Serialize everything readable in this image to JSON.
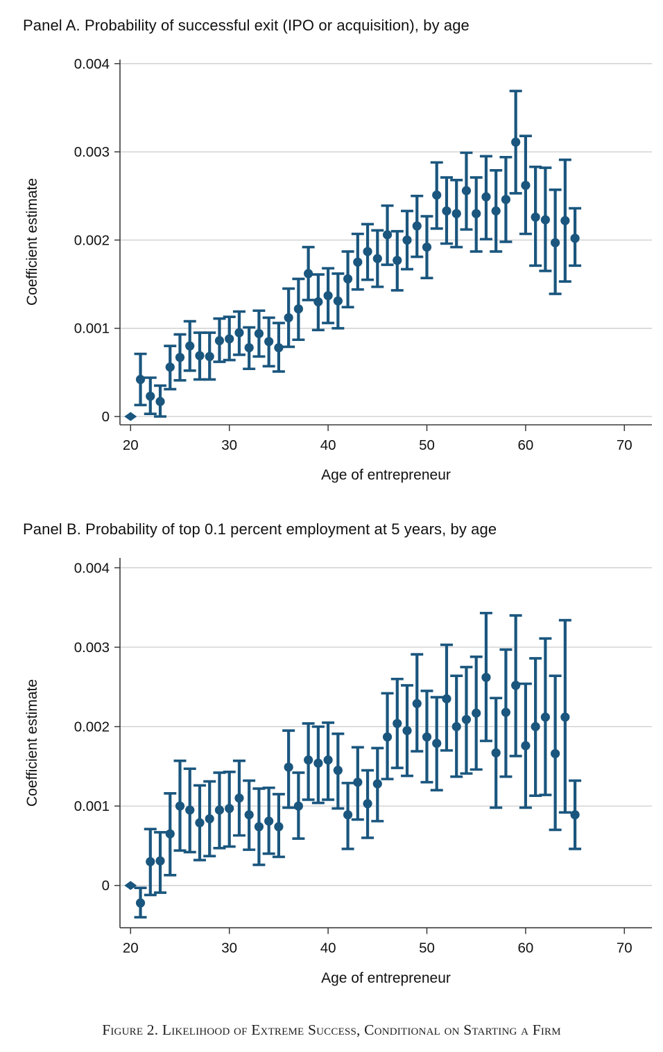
{
  "caption": "Figure 2. Likelihood of Extreme Success, Conditional on Starting a Firm",
  "colors": {
    "marker": "#1a567e",
    "grid": "#cccccc",
    "axis": "#3a3a3a",
    "text": "#111111",
    "background": "#ffffff"
  },
  "chart_data": [
    {
      "type": "scatter",
      "subtype": "coefficient-errorbar-plot",
      "title": "Panel A. Probability of successful exit (IPO or acquisition), by age",
      "xlabel": "Age of entrepreneur",
      "ylabel": "Coefficient estimate",
      "xlim": [
        19,
        72
      ],
      "ylim": [
        -0.0001,
        0.00405
      ],
      "grid": "horizontal",
      "legend": "none",
      "reference_point_marker": "diamond",
      "yticks": [
        {
          "value": 0,
          "label": "0"
        },
        {
          "value": 0.001,
          "label": "0.001"
        },
        {
          "value": 0.002,
          "label": "0.002"
        },
        {
          "value": 0.003,
          "label": "0.003"
        },
        {
          "value": 0.004,
          "label": "0.004"
        }
      ],
      "xticks": [
        20,
        30,
        40,
        50,
        60,
        70
      ],
      "points_columns": [
        "age",
        "estimate",
        "ci_low",
        "ci_high"
      ],
      "points": [
        [
          20,
          0.0,
          null,
          null
        ],
        [
          21,
          0.00042,
          0.00013,
          0.00071
        ],
        [
          22,
          0.00023,
          3e-05,
          0.00044
        ],
        [
          23,
          0.00017,
          0.0,
          0.00035
        ],
        [
          24,
          0.00056,
          0.00031,
          0.0008
        ],
        [
          25,
          0.00067,
          0.00041,
          0.00093
        ],
        [
          26,
          0.0008,
          0.00052,
          0.00108
        ],
        [
          27,
          0.00069,
          0.00042,
          0.00095
        ],
        [
          28,
          0.00068,
          0.00042,
          0.00095
        ],
        [
          29,
          0.00086,
          0.00062,
          0.00111
        ],
        [
          30,
          0.00088,
          0.00064,
          0.00113
        ],
        [
          31,
          0.00095,
          0.0007,
          0.00119
        ],
        [
          32,
          0.00078,
          0.00054,
          0.00101
        ],
        [
          33,
          0.00094,
          0.00068,
          0.0012
        ],
        [
          34,
          0.00085,
          0.00057,
          0.00112
        ],
        [
          35,
          0.00078,
          0.00051,
          0.00106
        ],
        [
          36,
          0.00112,
          0.00079,
          0.00145
        ],
        [
          37,
          0.00122,
          0.00087,
          0.00156
        ],
        [
          38,
          0.00162,
          0.00132,
          0.00192
        ],
        [
          39,
          0.0013,
          0.00098,
          0.00161
        ],
        [
          40,
          0.00137,
          0.00106,
          0.00168
        ],
        [
          41,
          0.00131,
          0.001,
          0.00162
        ],
        [
          42,
          0.00156,
          0.00124,
          0.00187
        ],
        [
          43,
          0.00175,
          0.00144,
          0.00207
        ],
        [
          44,
          0.00187,
          0.00155,
          0.00218
        ],
        [
          45,
          0.00179,
          0.00147,
          0.00211
        ],
        [
          46,
          0.00206,
          0.00172,
          0.00239
        ],
        [
          47,
          0.00177,
          0.00143,
          0.0021
        ],
        [
          48,
          0.002,
          0.00167,
          0.00233
        ],
        [
          49,
          0.00216,
          0.00181,
          0.0025
        ],
        [
          50,
          0.00192,
          0.00157,
          0.00227
        ],
        [
          51,
          0.00251,
          0.00213,
          0.00288
        ],
        [
          52,
          0.00233,
          0.00196,
          0.00271
        ],
        [
          53,
          0.0023,
          0.00192,
          0.00268
        ],
        [
          54,
          0.00256,
          0.00212,
          0.00299
        ],
        [
          55,
          0.0023,
          0.00187,
          0.00271
        ],
        [
          56,
          0.00249,
          0.00201,
          0.00295
        ],
        [
          57,
          0.00233,
          0.00187,
          0.00279
        ],
        [
          58,
          0.00246,
          0.00198,
          0.00294
        ],
        [
          59,
          0.00311,
          0.00253,
          0.00369
        ],
        [
          60,
          0.00262,
          0.00207,
          0.00318
        ],
        [
          61,
          0.00226,
          0.00171,
          0.00283
        ],
        [
          62,
          0.00223,
          0.00165,
          0.00282
        ],
        [
          63,
          0.00197,
          0.00139,
          0.00257
        ],
        [
          64,
          0.00222,
          0.00153,
          0.00291
        ],
        [
          65,
          0.00202,
          0.00171,
          0.00236
        ]
      ]
    },
    {
      "type": "scatter",
      "subtype": "coefficient-errorbar-plot",
      "title": "Panel B. Probability of top 0.1 percent employment at 5 years, by age",
      "xlabel": "Age of entrepreneur",
      "ylabel": "Coefficient estimate",
      "xlim": [
        19,
        72
      ],
      "ylim": [
        -0.00053,
        0.00412
      ],
      "grid": "horizontal",
      "legend": "none",
      "reference_point_marker": "diamond",
      "yticks": [
        {
          "value": 0,
          "label": "0"
        },
        {
          "value": 0.001,
          "label": "0.001"
        },
        {
          "value": 0.002,
          "label": "0.002"
        },
        {
          "value": 0.003,
          "label": "0.003"
        },
        {
          "value": 0.004,
          "label": "0.004"
        }
      ],
      "xticks": [
        20,
        30,
        40,
        50,
        60,
        70
      ],
      "points_columns": [
        "age",
        "estimate",
        "ci_low",
        "ci_high"
      ],
      "points": [
        [
          20,
          0.0,
          null,
          null
        ],
        [
          21,
          -0.00022,
          -0.0004,
          -3e-05
        ],
        [
          22,
          0.0003,
          -0.00012,
          0.00071
        ],
        [
          23,
          0.00031,
          -9e-05,
          0.00067
        ],
        [
          24,
          0.00065,
          0.00013,
          0.00116
        ],
        [
          25,
          0.001,
          0.00044,
          0.00157
        ],
        [
          26,
          0.00095,
          0.00042,
          0.00147
        ],
        [
          27,
          0.00079,
          0.00032,
          0.00126
        ],
        [
          28,
          0.00084,
          0.00037,
          0.00131
        ],
        [
          29,
          0.00095,
          0.00047,
          0.00142
        ],
        [
          30,
          0.00097,
          0.00049,
          0.00143
        ],
        [
          31,
          0.0011,
          0.00063,
          0.00157
        ],
        [
          32,
          0.00089,
          0.00045,
          0.00132
        ],
        [
          33,
          0.00074,
          0.00026,
          0.00122
        ],
        [
          34,
          0.00081,
          0.0004,
          0.00123
        ],
        [
          35,
          0.00074,
          0.00036,
          0.00115
        ],
        [
          36,
          0.00149,
          0.00098,
          0.00195
        ],
        [
          37,
          0.001,
          0.00059,
          0.00142
        ],
        [
          38,
          0.00158,
          0.00108,
          0.00204
        ],
        [
          39,
          0.00154,
          0.00104,
          0.002
        ],
        [
          40,
          0.00158,
          0.00108,
          0.00205
        ],
        [
          41,
          0.00145,
          0.00097,
          0.00191
        ],
        [
          42,
          0.00089,
          0.00046,
          0.00129
        ],
        [
          43,
          0.0013,
          0.00083,
          0.00174
        ],
        [
          44,
          0.00103,
          0.0006,
          0.00145
        ],
        [
          45,
          0.00128,
          0.00081,
          0.00173
        ],
        [
          46,
          0.00187,
          0.00134,
          0.00242
        ],
        [
          47,
          0.00204,
          0.00148,
          0.0026
        ],
        [
          48,
          0.00195,
          0.00138,
          0.00252
        ],
        [
          49,
          0.00229,
          0.00169,
          0.00291
        ],
        [
          50,
          0.00187,
          0.0013,
          0.00245
        ],
        [
          51,
          0.00179,
          0.0012,
          0.00237
        ],
        [
          52,
          0.00235,
          0.0017,
          0.00303
        ],
        [
          53,
          0.002,
          0.00137,
          0.00264
        ],
        [
          54,
          0.00209,
          0.00141,
          0.00275
        ],
        [
          55,
          0.00217,
          0.00146,
          0.00288
        ],
        [
          56,
          0.00262,
          0.00182,
          0.00343
        ],
        [
          57,
          0.00167,
          0.00098,
          0.00236
        ],
        [
          58,
          0.00218,
          0.00137,
          0.00297
        ],
        [
          59,
          0.00252,
          0.00163,
          0.0034
        ],
        [
          60,
          0.00176,
          0.00098,
          0.00254
        ],
        [
          61,
          0.002,
          0.00113,
          0.00286
        ],
        [
          62,
          0.00212,
          0.00114,
          0.00311
        ],
        [
          63,
          0.00166,
          0.0007,
          0.00264
        ],
        [
          64,
          0.00212,
          0.00092,
          0.00334
        ],
        [
          65,
          0.00089,
          0.00046,
          0.00132
        ]
      ]
    }
  ]
}
